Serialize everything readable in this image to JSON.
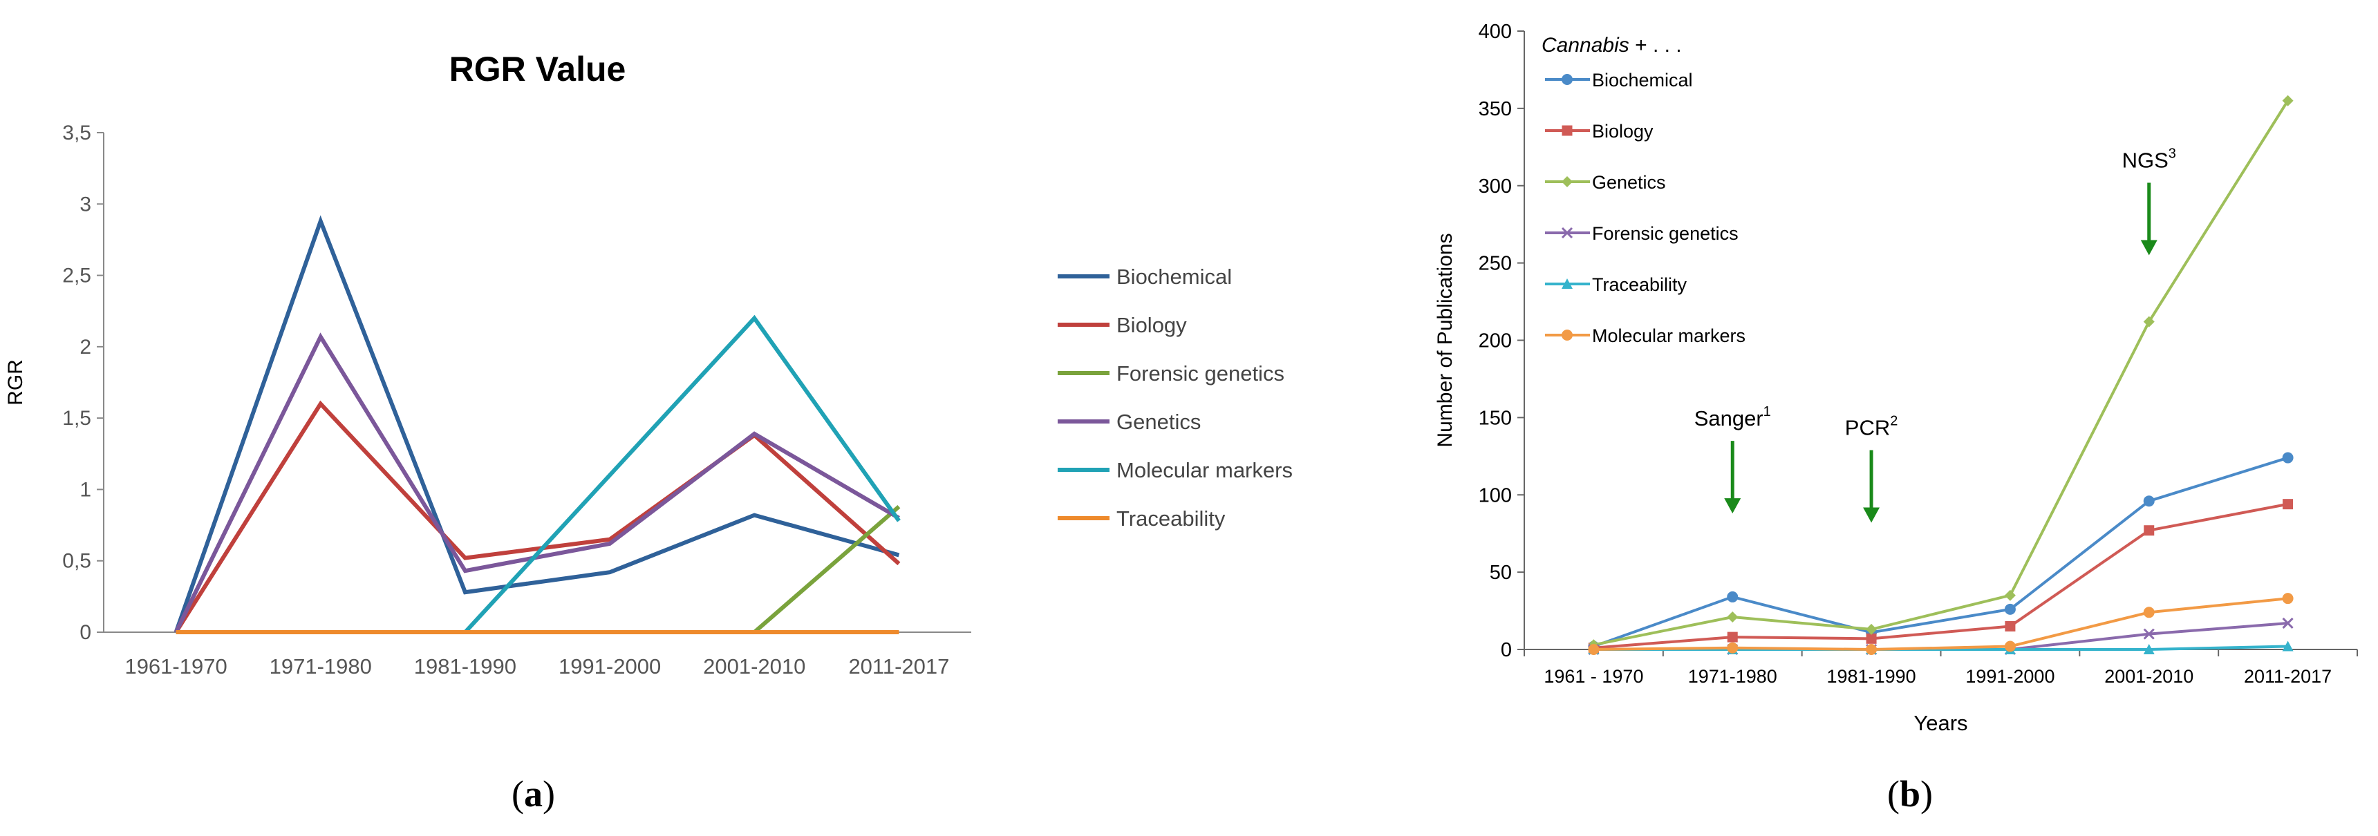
{
  "chart_data": [
    {
      "type": "line",
      "title": "RGR Value",
      "xlabel": "",
      "ylabel": "RGR",
      "ylim": [
        0,
        3.5
      ],
      "yticks": [
        "0",
        "0,5",
        "1",
        "1,5",
        "2",
        "2,5",
        "3",
        "3,5"
      ],
      "categories": [
        "1961-1970",
        "1971-1980",
        "1981-1990",
        "1991-2000",
        "2001-2010",
        "2011-2017"
      ],
      "legend_position": "right",
      "series": [
        {
          "name": "Biochemical",
          "color": "#2f6199",
          "values": [
            0,
            2.88,
            0.28,
            0.42,
            0.82,
            0.54
          ]
        },
        {
          "name": "Biology",
          "color": "#c0403c",
          "values": [
            0,
            1.6,
            0.52,
            0.65,
            1.38,
            0.48
          ]
        },
        {
          "name": "Forensic genetics",
          "color": "#7aa33c",
          "values": [
            0,
            0,
            0,
            0,
            0,
            0.88
          ]
        },
        {
          "name": "Genetics",
          "color": "#7b579a",
          "values": [
            0,
            2.07,
            0.43,
            0.62,
            1.39,
            0.8
          ]
        },
        {
          "name": "Molecular markers",
          "color": "#20a2b5",
          "values": [
            0,
            0,
            0,
            1.1,
            2.2,
            0.78
          ]
        },
        {
          "name": "Traceability",
          "color": "#ee8a2c",
          "values": [
            0,
            0,
            0,
            0,
            0,
            0
          ]
        }
      ]
    },
    {
      "type": "line",
      "title": "",
      "xlabel": "Years",
      "ylabel": "Number of Publications",
      "ylim": [
        0,
        400
      ],
      "yticks": [
        "0",
        "50",
        "100",
        "150",
        "200",
        "250",
        "300",
        "350",
        "400"
      ],
      "categories": [
        "1961 - 1970",
        "1971-1980",
        "1981-1990",
        "1991-2000",
        "2001-2010",
        "2011-2017"
      ],
      "legend_title_italic": "Cannabis",
      "legend_title_rest": " + . . .",
      "legend_position": "top-left",
      "series": [
        {
          "name": "Biochemical",
          "color": "#4a8ac8",
          "marker": "circle",
          "values": [
            2,
            34,
            11,
            26,
            96,
            124
          ]
        },
        {
          "name": "Biology",
          "color": "#d05a55",
          "marker": "square",
          "values": [
            1,
            8,
            7,
            15,
            77,
            94
          ]
        },
        {
          "name": "Genetics",
          "color": "#9ebf5a",
          "marker": "diamond",
          "values": [
            3,
            21,
            13,
            35,
            212,
            355
          ]
        },
        {
          "name": "Forensic genetics",
          "color": "#8a6aac",
          "marker": "x",
          "values": [
            0,
            0,
            0,
            0,
            10,
            17
          ]
        },
        {
          "name": "Traceability",
          "color": "#35b3cc",
          "marker": "triangle",
          "values": [
            0,
            0,
            0,
            0,
            0,
            2
          ]
        },
        {
          "name": "Molecular markers",
          "color": "#f29a45",
          "marker": "circle",
          "values": [
            0,
            1,
            0,
            2,
            24,
            33
          ]
        }
      ],
      "annotations": [
        {
          "label": "Sanger",
          "sup": "1",
          "category_index": 1,
          "value": 88
        },
        {
          "label": "PCR",
          "sup": "2",
          "category_index": 2,
          "value": 82
        },
        {
          "label": "NGS",
          "sup": "3",
          "category_index": 4,
          "value": 255
        }
      ],
      "arrow_color": "#1a8a1a"
    }
  ],
  "panel_labels": {
    "a": "a",
    "b": "b"
  }
}
